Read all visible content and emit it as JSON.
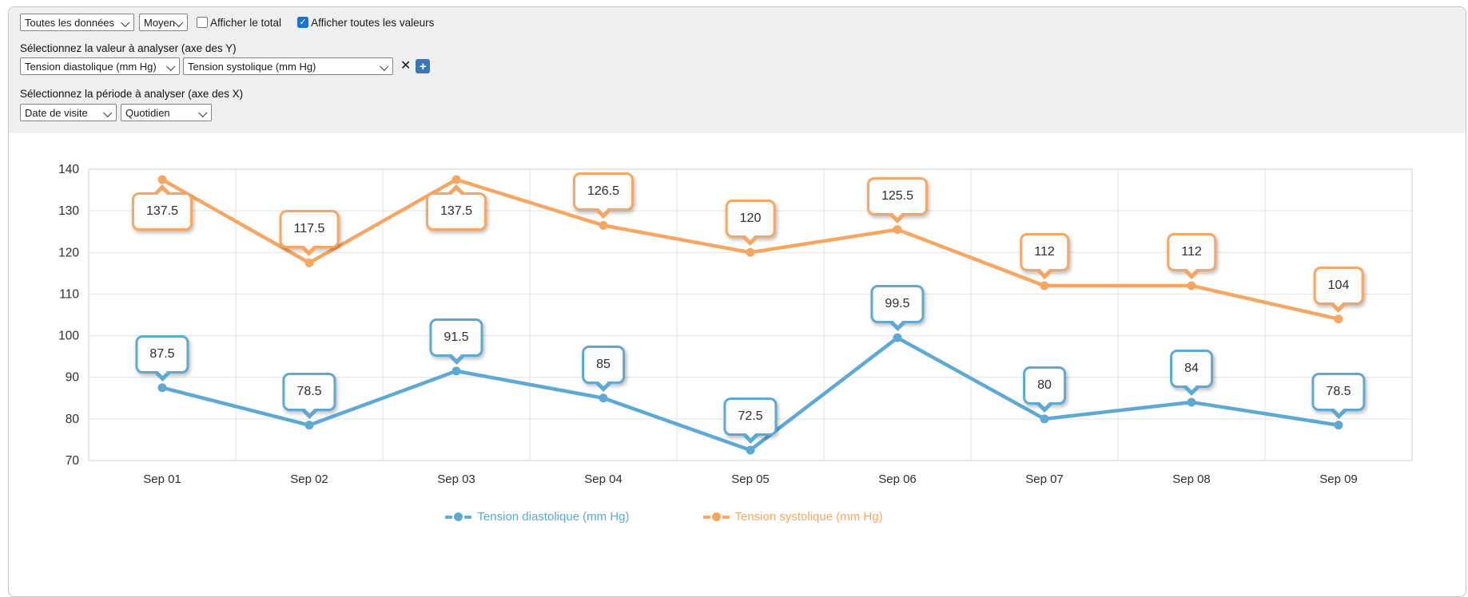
{
  "controls": {
    "data_range_select": "Toutes les données",
    "aggregation_select": "Moyen",
    "show_total_label": "Afficher le total",
    "show_total_checked": false,
    "show_values_label": "Afficher toutes les valeurs",
    "show_values_checked": true,
    "y_axis_section_label": "Sélectionnez la valeur à analyser (axe des Y)",
    "y_value_select_1": "Tension diastolique (mm Hg)",
    "y_value_select_2": "Tension systolique (mm Hg)",
    "remove_icon": "✕",
    "add_icon": "+",
    "check_icon": "✓",
    "x_axis_section_label": "Sélectionnez la période à analyser (axe des X)",
    "x_period_select_1": "Date de visite",
    "x_period_select_2": "Quotidien"
  },
  "chart_data": {
    "type": "line",
    "categories": [
      "Sep 01",
      "Sep 02",
      "Sep 03",
      "Sep 04",
      "Sep 05",
      "Sep 06",
      "Sep 07",
      "Sep 08",
      "Sep 09"
    ],
    "series": [
      {
        "name": "Tension diastolique (mm Hg)",
        "color": "#5CA9D4",
        "values": [
          87.5,
          78.5,
          91.5,
          85,
          72.5,
          99.5,
          80,
          84,
          78.5
        ],
        "label_position": [
          "above",
          "above",
          "above",
          "above",
          "above",
          "above",
          "above",
          "above",
          "above"
        ]
      },
      {
        "name": "Tension systolique (mm Hg)",
        "color": "#F7A661",
        "values": [
          137.5,
          117.5,
          137.5,
          126.5,
          120,
          125.5,
          112,
          112,
          104
        ],
        "label_position": [
          "below",
          "above",
          "below",
          "above",
          "above",
          "above",
          "above",
          "above",
          "above"
        ]
      }
    ],
    "ylim": [
      70,
      140
    ],
    "ytick_step": 10,
    "grid": true,
    "value_labels": true,
    "legend_position": "bottom"
  },
  "colors": {
    "header_bg": "#efefef",
    "panel_border": "#c3c3c3",
    "grid_line": "#e2e2e2",
    "plot_border": "#cfcfcf",
    "axis_text": "#2e2e2e",
    "checkbox_checked": "#1a73d1",
    "add_button": "#3b76b6"
  }
}
